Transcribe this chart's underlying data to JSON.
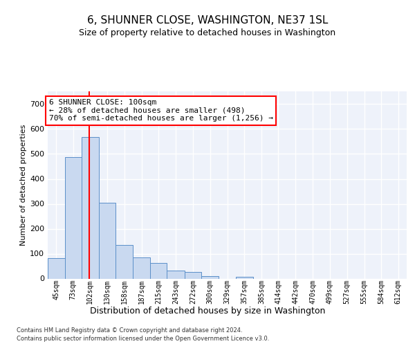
{
  "title": "6, SHUNNER CLOSE, WASHINGTON, NE37 1SL",
  "subtitle": "Size of property relative to detached houses in Washington",
  "xlabel": "Distribution of detached houses by size in Washington",
  "ylabel": "Number of detached properties",
  "footer_line1": "Contains HM Land Registry data © Crown copyright and database right 2024.",
  "footer_line2": "Contains public sector information licensed under the Open Government Licence v3.0.",
  "bar_color": "#c9d9f0",
  "bar_edge_color": "#5b8fc9",
  "annotation_line1": "6 SHUNNER CLOSE: 100sqm",
  "annotation_line2": "← 28% of detached houses are smaller (498)",
  "annotation_line3": "70% of semi-detached houses are larger (1,256) →",
  "redline_x": 100,
  "categories": [
    "45sqm",
    "73sqm",
    "102sqm",
    "130sqm",
    "158sqm",
    "187sqm",
    "215sqm",
    "243sqm",
    "272sqm",
    "300sqm",
    "329sqm",
    "357sqm",
    "385sqm",
    "414sqm",
    "442sqm",
    "470sqm",
    "499sqm",
    "527sqm",
    "555sqm",
    "584sqm",
    "612sqm"
  ],
  "bin_edges": [
    31,
    59,
    87,
    115,
    143,
    172,
    200,
    228,
    257,
    285,
    313,
    342,
    370,
    398,
    426,
    455,
    483,
    511,
    540,
    568,
    596,
    624
  ],
  "values": [
    82,
    488,
    567,
    303,
    135,
    84,
    63,
    32,
    27,
    11,
    0,
    8,
    0,
    0,
    0,
    0,
    0,
    0,
    0,
    0,
    0
  ],
  "ylim": [
    0,
    750
  ],
  "yticks": [
    0,
    100,
    200,
    300,
    400,
    500,
    600,
    700
  ],
  "background_color": "#eef2fa",
  "grid_color": "#ffffff",
  "title_fontsize": 11,
  "subtitle_fontsize": 9,
  "xlabel_fontsize": 9,
  "ylabel_fontsize": 8,
  "tick_fontsize": 7,
  "footer_fontsize": 6,
  "ann_fontsize": 8
}
